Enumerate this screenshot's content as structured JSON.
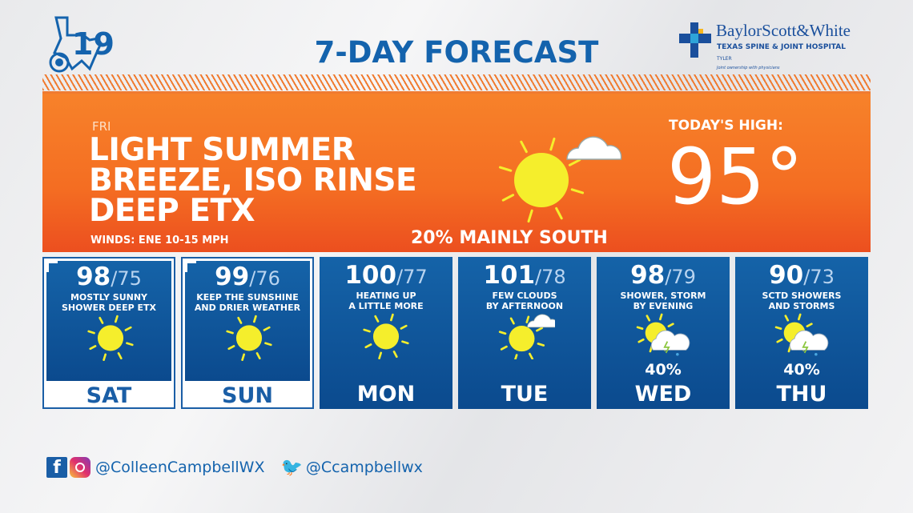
{
  "header": {
    "title": "7-DAY FORECAST",
    "station_logo": "19 CBS Texas",
    "sponsor": {
      "name": "BaylorScott&White",
      "subtitle": "TEXAS SPINE & JOINT HOSPITAL",
      "city": "TYLER",
      "tagline": "Joint ownership with physicians"
    }
  },
  "colors": {
    "brand_blue": "#1463ad",
    "orange": "#f47a22",
    "sun": "#f5ee2c"
  },
  "today": {
    "day": "FRI",
    "headline": [
      "LIGHT SUMMER",
      "BREEZE, ISO RINSE",
      "DEEP ETX"
    ],
    "winds": "WINDS: ENE 10-15 MPH",
    "precip": "20% MAINLY SOUTH",
    "high_label": "TODAY'S HIGH:",
    "high": "95°",
    "icon": "sun-cloud-icon"
  },
  "days": [
    {
      "day": "SAT",
      "hi": "98",
      "lo": "/75",
      "cond": [
        "MOSTLY SUNNY",
        "SHOWER DEEP ETX"
      ],
      "icon": "sun",
      "pct": ""
    },
    {
      "day": "SUN",
      "hi": "99",
      "lo": "/76",
      "cond": [
        "KEEP THE SUNSHINE",
        "AND DRIER WEATHER"
      ],
      "icon": "sun",
      "pct": ""
    },
    {
      "day": "MON",
      "hi": "100",
      "lo": "/77",
      "cond": [
        "HEATING UP",
        "A LITTLE MORE"
      ],
      "icon": "sun",
      "pct": ""
    },
    {
      "day": "TUE",
      "hi": "101",
      "lo": "/78",
      "cond": [
        "FEW CLOUDS",
        "BY AFTERNOON"
      ],
      "icon": "suncloud",
      "pct": ""
    },
    {
      "day": "WED",
      "hi": "98",
      "lo": "/79",
      "cond": [
        "SHOWER, STORM",
        "BY EVENING"
      ],
      "icon": "storm",
      "pct": "40%"
    },
    {
      "day": "THU",
      "hi": "90",
      "lo": "/73",
      "cond": [
        "SCTD SHOWERS",
        "AND STORMS"
      ],
      "icon": "storm",
      "pct": "40%"
    }
  ],
  "footer": {
    "facebook_instagram": "@ColleenCampbellWX",
    "twitter": "@Ccampbellwx"
  }
}
